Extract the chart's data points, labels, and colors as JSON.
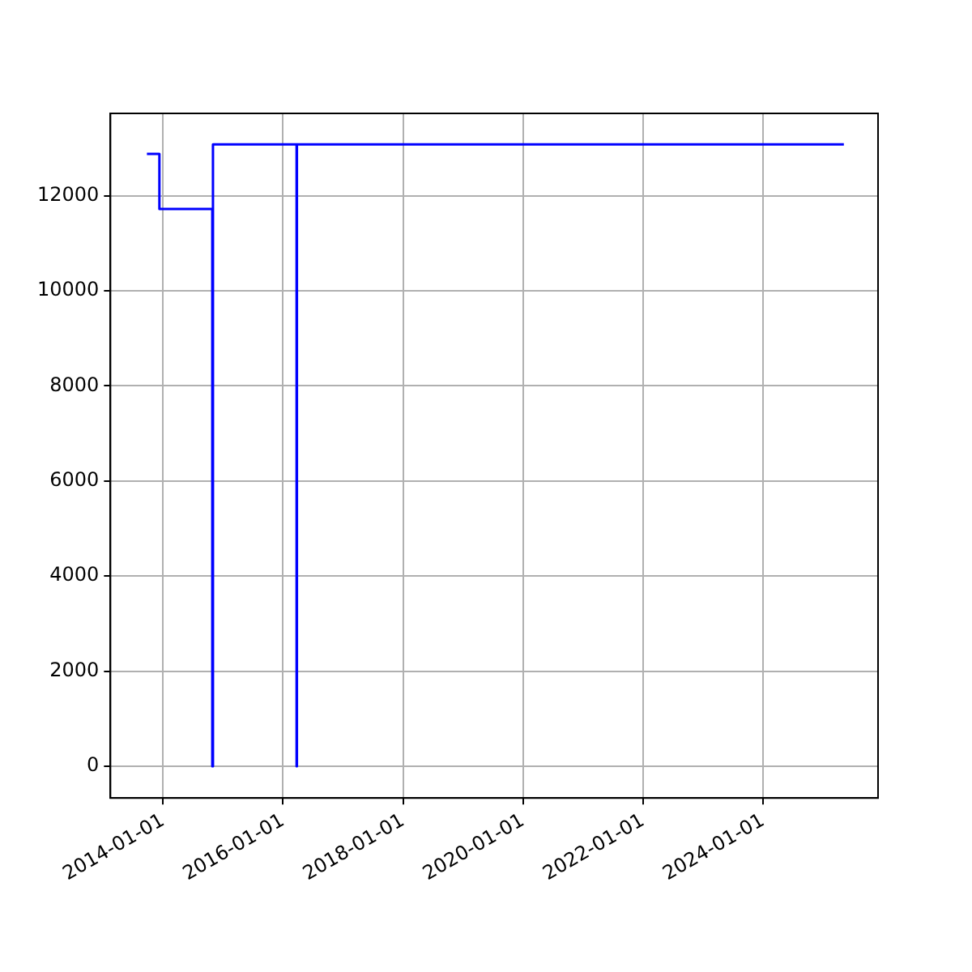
{
  "chart_data": {
    "type": "step",
    "x": [
      "2013-09-25",
      "2013-12-10",
      "2014-10-28",
      "2014-11-01",
      "2016-03-24",
      "2016-03-26",
      "2025-05-07"
    ],
    "series": [
      {
        "color": "#0000ff",
        "values": [
          12880,
          11720,
          0,
          13080,
          0,
          13080,
          13080
        ]
      }
    ],
    "xlim": [
      "2013-02-15",
      "2025-12-01"
    ],
    "xticks": [
      "2014-01-01",
      "2016-01-01",
      "2018-01-01",
      "2020-01-01",
      "2022-01-01",
      "2024-01-01"
    ],
    "ylim": [
      -670,
      13730
    ],
    "yticks": [
      0,
      2000,
      4000,
      6000,
      8000,
      10000,
      12000
    ],
    "grid": true,
    "legend": false,
    "marker": "none",
    "line_style": "solid"
  }
}
